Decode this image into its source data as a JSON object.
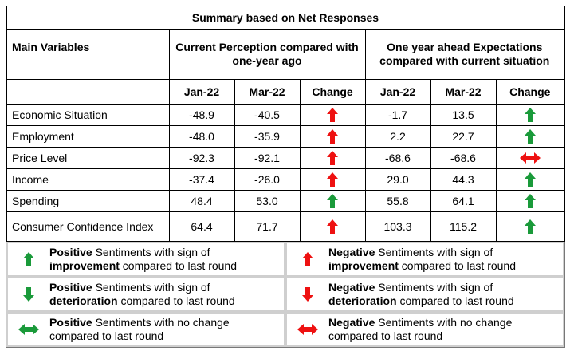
{
  "title": "Summary based on Net Responses",
  "header": {
    "main_variables": "Main Variables",
    "group_current": "Current Perception compared with one-year ago",
    "group_ahead": "One year ahead Expectations compared with current situation",
    "jan": "Jan-22",
    "mar": "Mar-22",
    "change": "Change"
  },
  "rows": [
    {
      "label": "Economic Situation",
      "cur_jan": "-48.9",
      "cur_mar": "-40.5",
      "cur_change": "negative-improvement",
      "exp_jan": "-1.7",
      "exp_mar": "13.5",
      "exp_change": "positive-improvement"
    },
    {
      "label": "Employment",
      "cur_jan": "-48.0",
      "cur_mar": "-35.9",
      "cur_change": "negative-improvement",
      "exp_jan": "2.2",
      "exp_mar": "22.7",
      "exp_change": "positive-improvement"
    },
    {
      "label": "Price Level",
      "cur_jan": "-92.3",
      "cur_mar": "-92.1",
      "cur_change": "negative-improvement",
      "exp_jan": "-68.6",
      "exp_mar": "-68.6",
      "exp_change": "negative-no-change"
    },
    {
      "label": "Income",
      "cur_jan": "-37.4",
      "cur_mar": "-26.0",
      "cur_change": "negative-improvement",
      "exp_jan": "29.0",
      "exp_mar": "44.3",
      "exp_change": "positive-improvement"
    },
    {
      "label": "Spending",
      "cur_jan": "48.4",
      "cur_mar": "53.0",
      "cur_change": "positive-improvement",
      "exp_jan": "55.8",
      "exp_mar": "64.1",
      "exp_change": "positive-improvement"
    },
    {
      "label": "Consumer Confidence Index",
      "cur_jan": "64.4",
      "cur_mar": "71.7",
      "cur_change": "negative-improvement",
      "exp_jan": "103.3",
      "exp_mar": "115.2",
      "exp_change": "positive-improvement"
    }
  ],
  "legend": [
    {
      "icon": "positive-improvement",
      "bold1": "Positive",
      "text1": " Sentiments with sign of",
      "bold2": "improvement",
      "text2": " compared to last round"
    },
    {
      "icon": "negative-improvement",
      "bold1": "Negative",
      "text1": " Sentiments with sign of",
      "bold2": "improvement",
      "text2": " compared to last round"
    },
    {
      "icon": "positive-deterioration",
      "bold1": "Positive",
      "text1": " Sentiments with sign of",
      "bold2": "deterioration",
      "text2": " compared to last round"
    },
    {
      "icon": "negative-deterioration",
      "bold1": "Negative",
      "text1": " Sentiments with sign of",
      "bold2": "deterioration",
      "text2": " compared to last round"
    },
    {
      "icon": "positive-no-change",
      "bold1": "Positive",
      "text1": " Sentiments with no change",
      "bold2": "",
      "text2": "compared to last round"
    },
    {
      "icon": "negative-no-change",
      "bold1": "Negative",
      "text1": " Sentiments with no change",
      "bold2": "",
      "text2": "compared to last round"
    }
  ],
  "colors": {
    "positive": "#1a9a3a",
    "negative": "#ee1111"
  }
}
